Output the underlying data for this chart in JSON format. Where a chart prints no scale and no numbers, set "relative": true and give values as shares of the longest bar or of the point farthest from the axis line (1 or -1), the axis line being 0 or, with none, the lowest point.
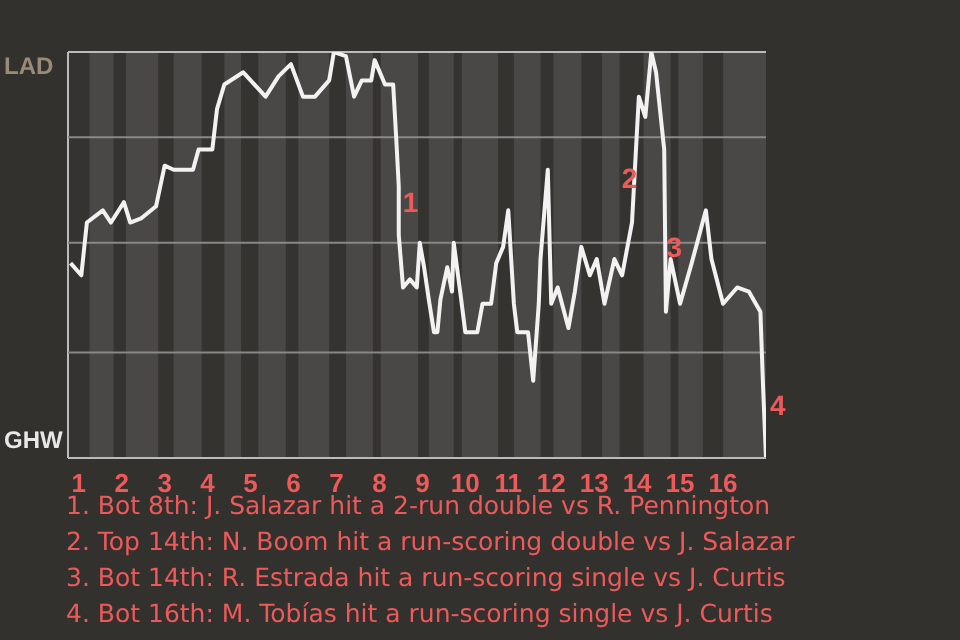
{
  "chart_data": {
    "type": "line",
    "relative": true,
    "x": [
      0.81,
      1.06,
      1.19,
      1.56,
      1.75,
      2.05,
      2.2,
      2.45,
      2.8,
      3.0,
      3.21,
      3.38,
      3.66,
      3.79,
      4.11,
      4.22,
      4.39,
      4.83,
      5.35,
      5.65,
      5.94,
      6.22,
      6.5,
      6.83,
      6.94,
      7.22,
      7.41,
      7.59,
      7.81,
      7.89,
      8.13,
      8.32,
      8.39,
      8.45,
      8.45,
      8.55,
      8.71,
      8.87,
      8.94,
      9.04,
      9.15,
      9.27,
      9.35,
      9.42,
      9.58,
      9.69,
      9.73,
      9.88,
      10.0,
      10.28,
      10.4,
      10.6,
      10.72,
      10.88,
      11.0,
      11.13,
      11.21,
      11.46,
      11.58,
      11.71,
      11.75,
      11.92,
      12.0,
      12.15,
      12.4,
      12.55,
      12.7,
      12.9,
      13.06,
      13.24,
      13.47,
      13.65,
      13.88,
      14.04,
      14.19,
      14.33,
      14.44,
      14.63,
      14.67,
      14.78,
      15.0,
      15.27,
      15.6,
      15.73,
      16.0,
      16.33,
      16.6,
      16.87,
      16.93,
      17.0
    ],
    "series": [
      {
        "color": "#f2f2f2",
        "values": [
          0.48,
          0.45,
          0.58,
          0.61,
          0.58,
          0.63,
          0.58,
          0.59,
          0.62,
          0.72,
          0.71,
          0.71,
          0.71,
          0.76,
          0.76,
          0.86,
          0.92,
          0.95,
          0.89,
          0.94,
          0.97,
          0.89,
          0.89,
          0.93,
          1,
          0.99,
          0.89,
          0.93,
          0.93,
          0.98,
          0.92,
          0.92,
          0.79,
          0.67,
          0.55,
          0.42,
          0.44,
          0.42,
          0.53,
          0.47,
          0.39,
          0.31,
          0.31,
          0.39,
          0.47,
          0.41,
          0.53,
          0.41,
          0.31,
          0.31,
          0.38,
          0.38,
          0.48,
          0.52,
          0.61,
          0.38,
          0.31,
          0.31,
          0.19,
          0.38,
          0.49,
          0.71,
          0.38,
          0.42,
          0.32,
          0.41,
          0.52,
          0.45,
          0.49,
          0.38,
          0.49,
          0.45,
          0.58,
          0.89,
          0.84,
          1,
          0.95,
          0.76,
          0.36,
          0.49,
          0.38,
          0.48,
          0.61,
          0.49,
          0.38,
          0.42,
          0.41,
          0.36,
          0.18,
          0
        ]
      }
    ],
    "xlim": [
      0.75,
      17
    ],
    "xticks": [
      1,
      2,
      3,
      4,
      5,
      6,
      7,
      8,
      9,
      10,
      11,
      12,
      13,
      14,
      15,
      16
    ],
    "legend": false,
    "marker": "none",
    "line_style": "solid",
    "ref_lines": [
      {
        "axis": "y",
        "value": 0.26,
        "color": "#8a8886"
      },
      {
        "axis": "y",
        "value": 0.53,
        "color": "#8a8886"
      },
      {
        "axis": "y",
        "value": 0.79,
        "color": "#8a8886"
      }
    ],
    "bands": [
      {
        "axis": "x",
        "from": 0.75,
        "to": 1.25,
        "color": "#353330"
      },
      {
        "axis": "x",
        "from": 1.81,
        "to": 2.1,
        "color": "#353330"
      },
      {
        "axis": "x",
        "from": 2.85,
        "to": 3.21,
        "color": "#353330"
      },
      {
        "axis": "x",
        "from": 3.86,
        "to": 4.39,
        "color": "#353330"
      },
      {
        "axis": "x",
        "from": 4.78,
        "to": 5.18,
        "color": "#353330"
      },
      {
        "axis": "x",
        "from": 5.82,
        "to": 6.11,
        "color": "#353330"
      },
      {
        "axis": "x",
        "from": 6.83,
        "to": 7.22,
        "color": "#353330"
      },
      {
        "axis": "x",
        "from": 7.85,
        "to": 8.03,
        "color": "#353330"
      },
      {
        "axis": "x",
        "from": 8.9,
        "to": 9.15,
        "color": "#353330"
      },
      {
        "axis": "x",
        "from": 9.73,
        "to": 9.92,
        "color": "#353330"
      },
      {
        "axis": "x",
        "from": 10.76,
        "to": 11.13,
        "color": "#353330"
      },
      {
        "axis": "x",
        "from": 11.75,
        "to": 12.05,
        "color": "#353330"
      },
      {
        "axis": "x",
        "from": 12.7,
        "to": 13.18,
        "color": "#353330"
      },
      {
        "axis": "x",
        "from": 13.59,
        "to": 14.15,
        "color": "#353330"
      },
      {
        "axis": "x",
        "from": 14.78,
        "to": 14.96,
        "color": "#353330"
      },
      {
        "axis": "x",
        "from": 15.53,
        "to": 16.0,
        "color": "#353330"
      }
    ],
    "annotations": [
      "LAD",
      "GHW",
      {
        "text": "1",
        "x": 8.45,
        "y": 0.63
      },
      {
        "text": "2",
        "x": 13.55,
        "y": 0.69
      },
      {
        "text": "3",
        "x": 14.59,
        "y": 0.52
      },
      {
        "text": "4",
        "x": 17,
        "y": 0.13
      },
      "1. Bot 8th: J. Salazar hit a 2-run double vs R. Pennington",
      "2. Top 14th: N. Boom hit a run-scoring double vs J. Salazar",
      "3. Bot 14th: R. Estrada hit a run-scoring single vs J. Curtis",
      "4. Bot 16th: M. Tobías hit a run-scoring single vs J. Curtis"
    ]
  }
}
